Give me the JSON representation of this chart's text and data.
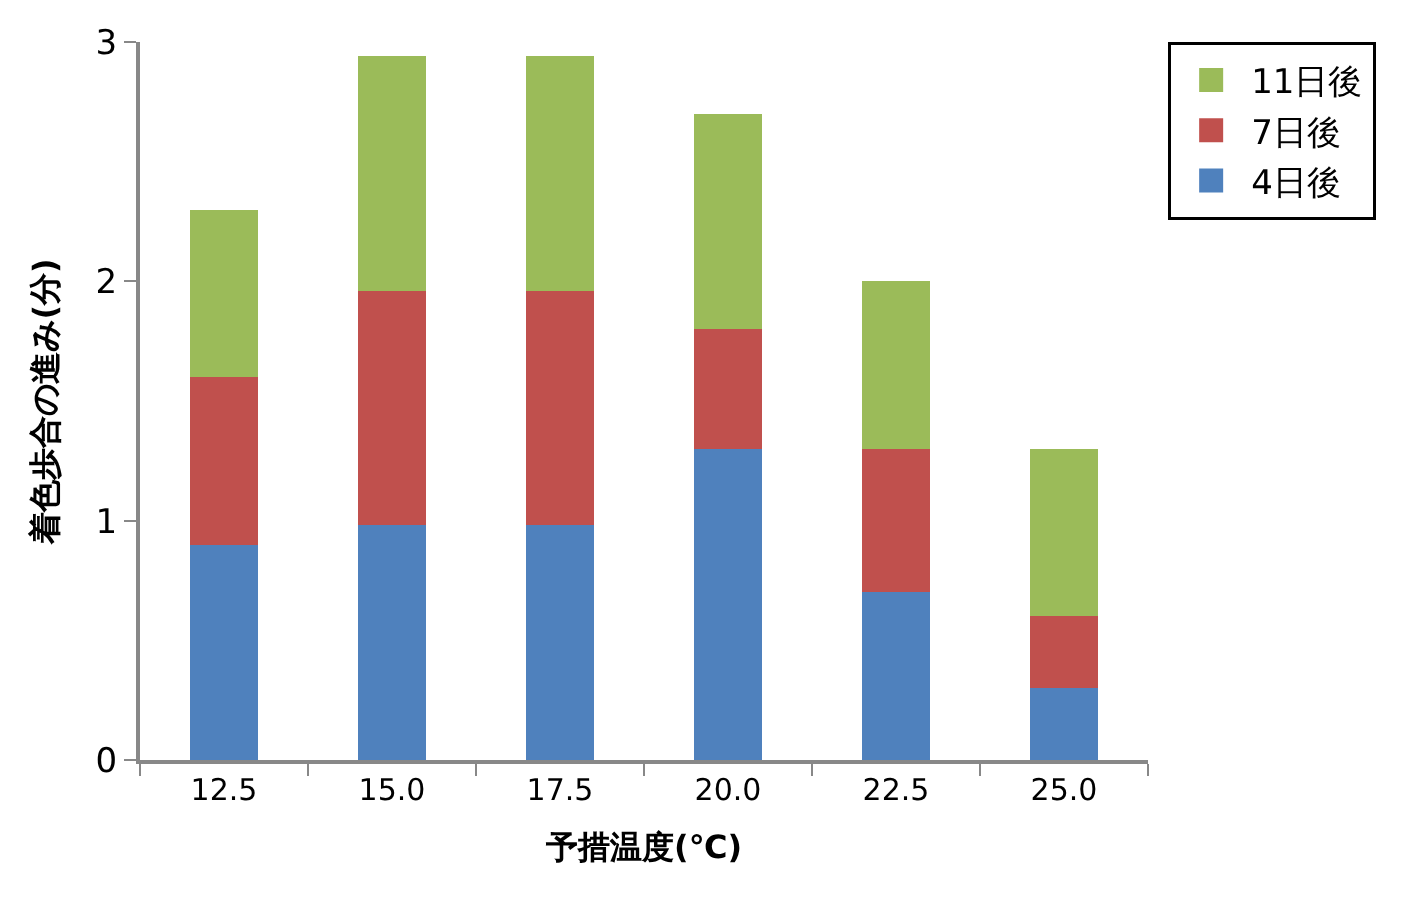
{
  "chart_data": {
    "type": "bar",
    "stacked": true,
    "xlabel": "予措温度(℃)",
    "ylabel": "着色歩合の進み(分)",
    "categories": [
      "12.5",
      "15.0",
      "17.5",
      "20.0",
      "22.5",
      "25.0"
    ],
    "series": [
      {
        "name": "4日後",
        "color": "#4f81bd",
        "values": [
          0.9,
          0.98,
          0.98,
          1.3,
          0.7,
          0.3
        ]
      },
      {
        "name": "7日後",
        "color": "#c0504d",
        "values": [
          0.7,
          0.98,
          0.98,
          0.5,
          0.6,
          0.3
        ]
      },
      {
        "name": "11日後",
        "color": "#9bbb59",
        "values": [
          0.7,
          0.98,
          0.98,
          0.9,
          0.7,
          0.7
        ]
      }
    ],
    "ylim": [
      0,
      3
    ],
    "yticks": [
      0,
      1,
      2,
      3
    ],
    "legend": "top right"
  }
}
